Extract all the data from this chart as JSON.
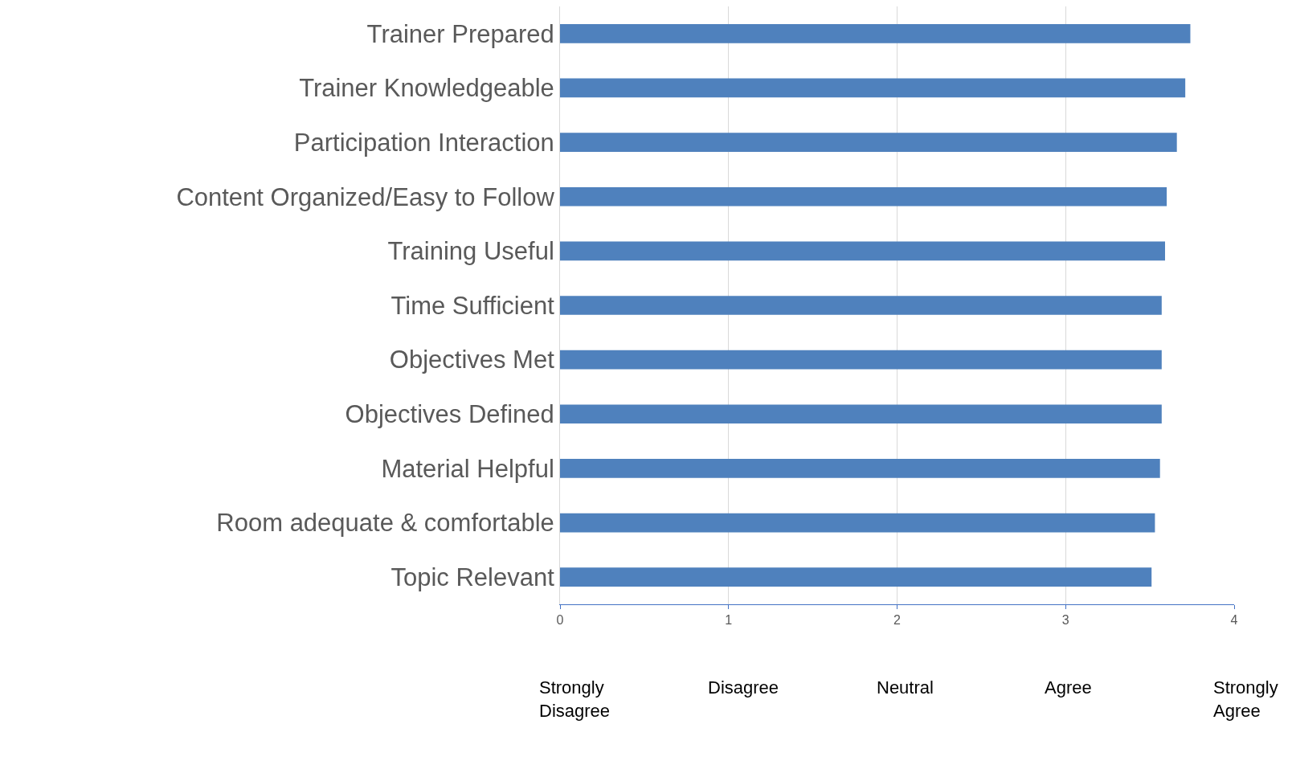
{
  "chart_data": {
    "type": "bar",
    "orientation": "horizontal",
    "categories": [
      "Trainer Prepared",
      "Trainer Knowledgeable",
      "Participation Interaction",
      "Content Organized/Easy to Follow",
      "Training Useful",
      "Time Sufficient",
      "Objectives Met",
      "Objectives Defined",
      "Material Helpful",
      "Room adequate & comfortable",
      "Topic Relevant"
    ],
    "values": [
      3.74,
      3.71,
      3.66,
      3.6,
      3.59,
      3.57,
      3.57,
      3.57,
      3.56,
      3.53,
      3.51
    ],
    "color": "#4f81bd",
    "xlim": [
      0,
      4
    ],
    "xticks": [
      0,
      1,
      2,
      3,
      4
    ],
    "grid": "x",
    "annotations": [
      "Strongly\nDisagree",
      "Disagree",
      "Neutral",
      "Agree",
      "Strongly\nAgree"
    ]
  }
}
